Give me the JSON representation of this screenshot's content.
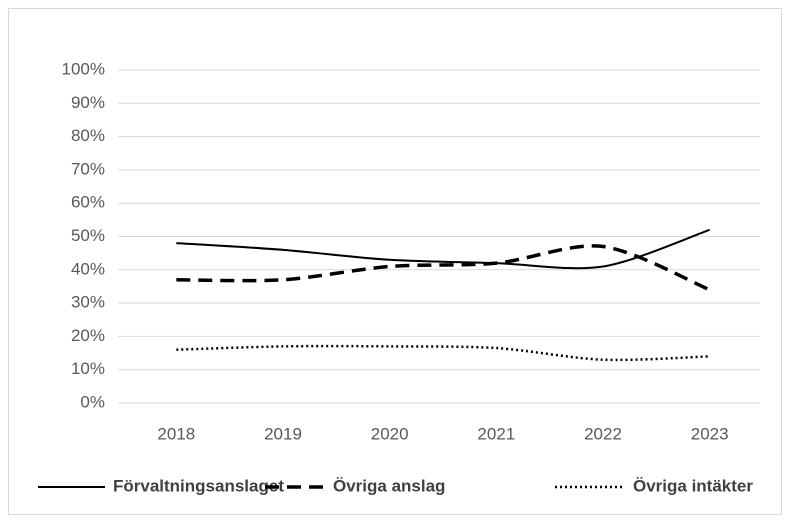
{
  "chart_data": {
    "type": "line",
    "smooth": true,
    "grid": true,
    "legend": "bottom",
    "x": [
      "2018",
      "2019",
      "2020",
      "2021",
      "2022",
      "2023"
    ],
    "series": [
      {
        "name": "Förvaltningsanslaget",
        "color": "#000000",
        "line_style": "solid",
        "values": [
          48,
          46,
          43,
          42,
          41,
          52
        ]
      },
      {
        "name": "Övriga anslag",
        "color": "#000000",
        "line_style": "dashed",
        "values": [
          37,
          37,
          41,
          42,
          47,
          34
        ]
      },
      {
        "name": "Övriga intäkter",
        "color": "#000000",
        "line_style": "dotted",
        "values": [
          16,
          17,
          17,
          16.5,
          13,
          14
        ]
      }
    ],
    "ylim": [
      0,
      100
    ],
    "yticks": [
      {
        "value": 0,
        "label": "0%"
      },
      {
        "value": 10,
        "label": "10%"
      },
      {
        "value": 20,
        "label": "20%"
      },
      {
        "value": 30,
        "label": "30%"
      },
      {
        "value": 40,
        "label": "40%"
      },
      {
        "value": 50,
        "label": "50%"
      },
      {
        "value": 60,
        "label": "60%"
      },
      {
        "value": 70,
        "label": "70%"
      },
      {
        "value": 80,
        "label": "80%"
      },
      {
        "value": 90,
        "label": "90%"
      },
      {
        "value": 100,
        "label": "100%"
      }
    ]
  }
}
